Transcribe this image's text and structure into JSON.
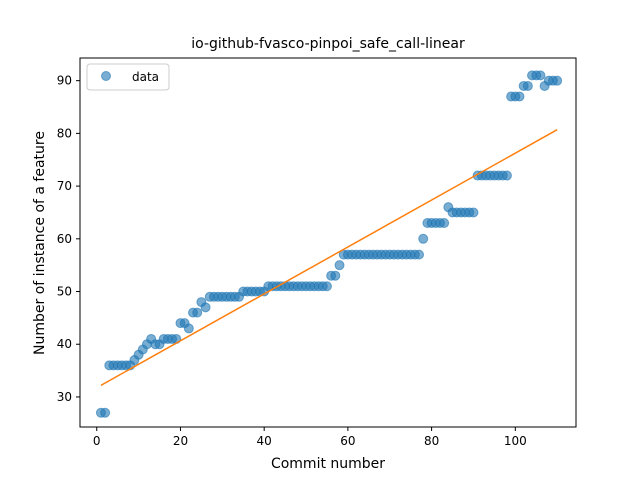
{
  "chart_data": {
    "type": "scatter",
    "title": "io-github-fvasco-pinpoi_safe_call-linear",
    "xlabel": "Commit number",
    "ylabel": "Number of instance of a feature",
    "xlim": [
      -4,
      114.5
    ],
    "ylim": [
      24.3,
      94.3
    ],
    "xticks": [
      0,
      20,
      40,
      60,
      80,
      100
    ],
    "yticks": [
      30,
      40,
      50,
      60,
      70,
      80,
      90
    ],
    "grid": false,
    "legend": {
      "position": "upper-left",
      "entries": [
        "data"
      ]
    },
    "colors": {
      "data": "#1f77b4",
      "fit": "#ff7f0e"
    },
    "series": [
      {
        "name": "data",
        "kind": "scatter",
        "x": [
          1,
          2,
          3,
          4,
          5,
          6,
          7,
          8,
          9,
          10,
          11,
          12,
          13,
          14,
          15,
          16,
          17,
          18,
          19,
          20,
          21,
          22,
          23,
          24,
          25,
          26,
          27,
          28,
          29,
          30,
          31,
          32,
          33,
          34,
          35,
          36,
          37,
          38,
          39,
          40,
          41,
          42,
          43,
          44,
          45,
          46,
          47,
          48,
          49,
          50,
          51,
          52,
          53,
          54,
          55,
          56,
          57,
          58,
          59,
          60,
          61,
          62,
          63,
          64,
          65,
          66,
          67,
          68,
          69,
          70,
          71,
          72,
          73,
          74,
          75,
          76,
          77,
          78,
          79,
          80,
          81,
          82,
          83,
          84,
          85,
          86,
          87,
          88,
          89,
          90,
          91,
          92,
          93,
          94,
          95,
          96,
          97,
          98,
          99,
          100,
          101,
          102,
          103,
          104,
          105,
          106,
          107,
          108,
          109,
          110
        ],
        "y": [
          27,
          27,
          36,
          36,
          36,
          36,
          36,
          36,
          37,
          38,
          39,
          40,
          41,
          40,
          40,
          41,
          41,
          41,
          41,
          44,
          44,
          43,
          46,
          46,
          48,
          47,
          49,
          49,
          49,
          49,
          49,
          49,
          49,
          49,
          50,
          50,
          50,
          50,
          50,
          50,
          51,
          51,
          51,
          51,
          51,
          51,
          51,
          51,
          51,
          51,
          51,
          51,
          51,
          51,
          51,
          53,
          53,
          55,
          57,
          57,
          57,
          57,
          57,
          57,
          57,
          57,
          57,
          57,
          57,
          57,
          57,
          57,
          57,
          57,
          57,
          57,
          57,
          60,
          63,
          63,
          63,
          63,
          63,
          66,
          65,
          65,
          65,
          65,
          65,
          65,
          72,
          72,
          72,
          72,
          72,
          72,
          72,
          72,
          87,
          87,
          87,
          89,
          89,
          91,
          91,
          91,
          89,
          90,
          90,
          90
        ]
      },
      {
        "name": "",
        "kind": "line",
        "x": [
          1,
          110
        ],
        "y": [
          32.2,
          80.7
        ]
      }
    ]
  }
}
